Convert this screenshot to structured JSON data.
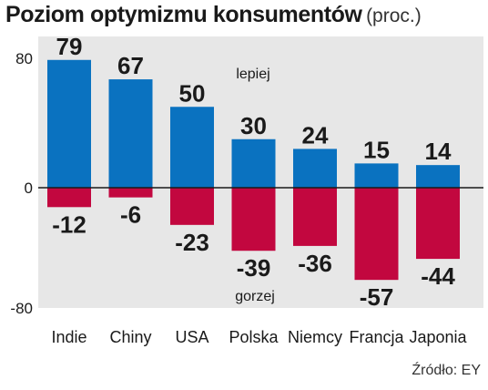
{
  "title": "Poziom optymizmu konsumentów",
  "unit": "(proc.)",
  "source": "Źródło: EY",
  "colors": {
    "positive": "#0a72c0",
    "negative": "#c2073f",
    "panel": "#e7e7e7",
    "axis": "#1a1a1a"
  },
  "chart_data": {
    "type": "bar",
    "title": "Poziom optymizmu konsumentów",
    "categories": [
      "Indie",
      "Chiny",
      "USA",
      "Polska",
      "Niemcy",
      "Francja",
      "Japonia"
    ],
    "series": [
      {
        "name": "lepiej",
        "values": [
          79,
          67,
          50,
          30,
          24,
          15,
          14
        ]
      },
      {
        "name": "gorzej",
        "values": [
          -12,
          -6,
          -23,
          -39,
          -36,
          -57,
          -44
        ]
      }
    ],
    "yticks": [
      80,
      0,
      -80
    ],
    "ylim": [
      -80,
      80
    ],
    "grid": false
  }
}
